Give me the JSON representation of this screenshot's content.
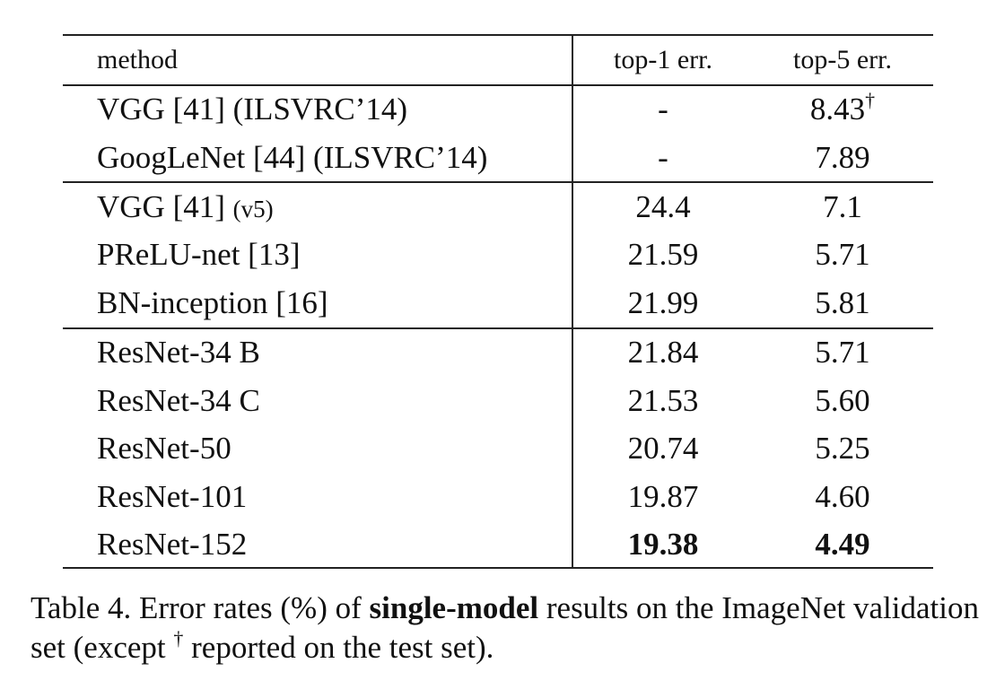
{
  "table": {
    "header": {
      "method": "method",
      "top1": "top-1 err.",
      "top5": "top-5 err."
    },
    "rows": [
      {
        "method": "VGG [41] (ILSVRC’14)",
        "top1": "-",
        "top5": "8.43",
        "top5_mark": "†"
      },
      {
        "method": "GoogLeNet [44] (ILSVRC’14)",
        "top1": "-",
        "top5": "7.89"
      },
      {
        "method": "VGG [41]",
        "method_note": "(v5)",
        "top1": "24.4",
        "top5": "7.1"
      },
      {
        "method": "PReLU-net [13]",
        "top1": "21.59",
        "top5": "5.71"
      },
      {
        "method": "BN-inception [16]",
        "top1": "21.99",
        "top5": "5.81"
      },
      {
        "method": "ResNet-34 B",
        "top1": "21.84",
        "top5": "5.71"
      },
      {
        "method": "ResNet-34 C",
        "top1": "21.53",
        "top5": "5.60"
      },
      {
        "method": "ResNet-50",
        "top1": "20.74",
        "top5": "5.25"
      },
      {
        "method": "ResNet-101",
        "top1": "19.87",
        "top5": "4.60"
      },
      {
        "method": "ResNet-152",
        "top1": "19.38",
        "top5": "4.49"
      }
    ]
  },
  "caption": {
    "prefix": "Table 4. Error rates (%) of ",
    "bold": "single-model",
    "middle": " results on the ImageNet validation set (except ",
    "dagger": "†",
    "suffix": " reported on the test set)."
  }
}
